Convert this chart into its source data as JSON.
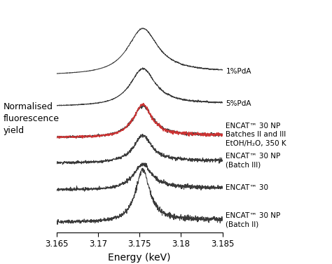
{
  "xmin": 3.165,
  "xmax": 3.185,
  "xlabel": "Energy (keV)",
  "ylabel": "Normalised\nfluorescence\nyield",
  "xticks": [
    3.165,
    3.17,
    3.175,
    3.18,
    3.185
  ],
  "xtick_labels": [
    "3.165",
    "3.17",
    "3.175",
    "3.18",
    "3.185"
  ],
  "curve_labels": [
    "1%PdA",
    "5%PdA",
    "ENCAT™ 30 NP\nBatches II and III\nEtOH/H₂O, 350 K",
    "ENCAT™ 30 NP\n(Batch III)",
    "ENCAT™ 30",
    "ENCAT™ 30 NP\n(Batch II)"
  ],
  "offsets": [
    5.2,
    4.1,
    3.0,
    2.1,
    1.15,
    0.0
  ],
  "background_color": "#ffffff",
  "line_color": "#3a3a3a",
  "red_color": "#cc3333",
  "figsize": [
    4.74,
    3.77
  ],
  "dpi": 100
}
